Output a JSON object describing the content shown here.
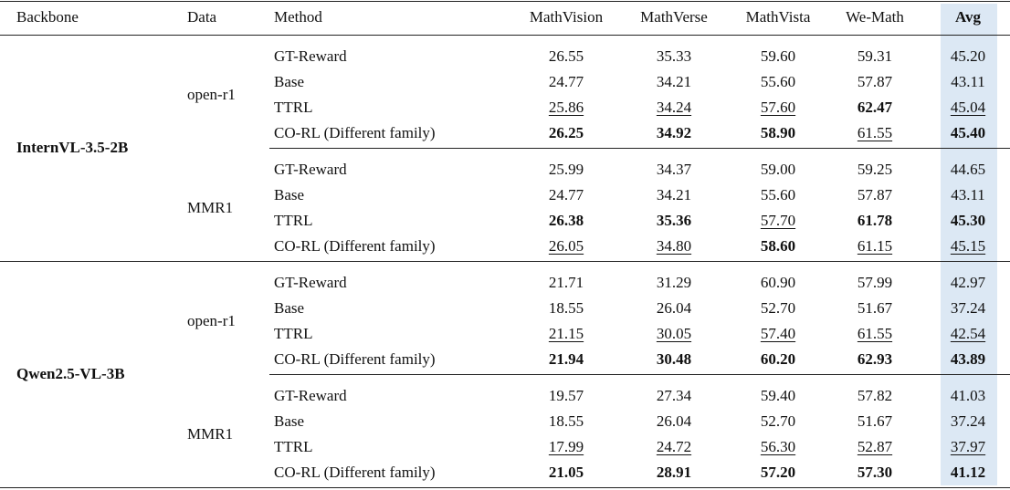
{
  "header": [
    "Backbone",
    "Data",
    "Method",
    "MathVision",
    "MathVerse",
    "MathVista",
    "We-Math",
    "Avg"
  ],
  "groups": [
    {
      "backbone": "InternVL-3.5-2B",
      "blocks": [
        {
          "data": "open-r1",
          "rows": [
            {
              "method": "GT-Reward",
              "values": [
                "26.55",
                "35.33",
                "59.60",
                "59.31",
                "45.20"
              ],
              "bold": [],
              "underline": []
            },
            {
              "method": "Base",
              "values": [
                "24.77",
                "34.21",
                "55.60",
                "57.87",
                "43.11"
              ],
              "bold": [],
              "underline": []
            },
            {
              "method": "TTRL",
              "values": [
                "25.86",
                "34.24",
                "57.60",
                "62.47",
                "45.04"
              ],
              "bold": [
                3
              ],
              "underline": [
                0,
                1,
                2,
                4
              ]
            },
            {
              "method": "CO-RL (Different family)",
              "values": [
                "26.25",
                "34.92",
                "58.90",
                "61.55",
                "45.40"
              ],
              "bold": [
                0,
                1,
                2,
                4
              ],
              "underline": [
                3
              ]
            }
          ]
        },
        {
          "data": "MMR1",
          "rows": [
            {
              "method": "GT-Reward",
              "values": [
                "25.99",
                "34.37",
                "59.00",
                "59.25",
                "44.65"
              ],
              "bold": [],
              "underline": []
            },
            {
              "method": "Base",
              "values": [
                "24.77",
                "34.21",
                "55.60",
                "57.87",
                "43.11"
              ],
              "bold": [],
              "underline": []
            },
            {
              "method": "TTRL",
              "values": [
                "26.38",
                "35.36",
                "57.70",
                "61.78",
                "45.30"
              ],
              "bold": [
                0,
                1,
                3,
                4
              ],
              "underline": [
                2
              ]
            },
            {
              "method": "CO-RL (Different family)",
              "values": [
                "26.05",
                "34.80",
                "58.60",
                "61.15",
                "45.15"
              ],
              "bold": [
                2
              ],
              "underline": [
                0,
                1,
                3,
                4
              ]
            }
          ]
        }
      ]
    },
    {
      "backbone": "Qwen2.5-VL-3B",
      "blocks": [
        {
          "data": "open-r1",
          "rows": [
            {
              "method": "GT-Reward",
              "values": [
                "21.71",
                "31.29",
                "60.90",
                "57.99",
                "42.97"
              ],
              "bold": [],
              "underline": []
            },
            {
              "method": "Base",
              "values": [
                "18.55",
                "26.04",
                "52.70",
                "51.67",
                "37.24"
              ],
              "bold": [],
              "underline": []
            },
            {
              "method": "TTRL",
              "values": [
                "21.15",
                "30.05",
                "57.40",
                "61.55",
                "42.54"
              ],
              "bold": [],
              "underline": [
                0,
                1,
                2,
                3,
                4
              ]
            },
            {
              "method": "CO-RL (Different family)",
              "values": [
                "21.94",
                "30.48",
                "60.20",
                "62.93",
                "43.89"
              ],
              "bold": [
                0,
                1,
                2,
                3,
                4
              ],
              "underline": []
            }
          ]
        },
        {
          "data": "MMR1",
          "rows": [
            {
              "method": "GT-Reward",
              "values": [
                "19.57",
                "27.34",
                "59.40",
                "57.82",
                "41.03"
              ],
              "bold": [],
              "underline": []
            },
            {
              "method": "Base",
              "values": [
                "18.55",
                "26.04",
                "52.70",
                "51.67",
                "37.24"
              ],
              "bold": [],
              "underline": []
            },
            {
              "method": "TTRL",
              "values": [
                "17.99",
                "24.72",
                "56.30",
                "52.87",
                "37.97"
              ],
              "bold": [],
              "underline": [
                0,
                1,
                2,
                3,
                4
              ]
            },
            {
              "method": "CO-RL (Different family)",
              "values": [
                "21.05",
                "28.91",
                "57.20",
                "57.30",
                "41.12"
              ],
              "bold": [
                0,
                1,
                2,
                3,
                4
              ],
              "underline": []
            }
          ]
        }
      ]
    }
  ]
}
